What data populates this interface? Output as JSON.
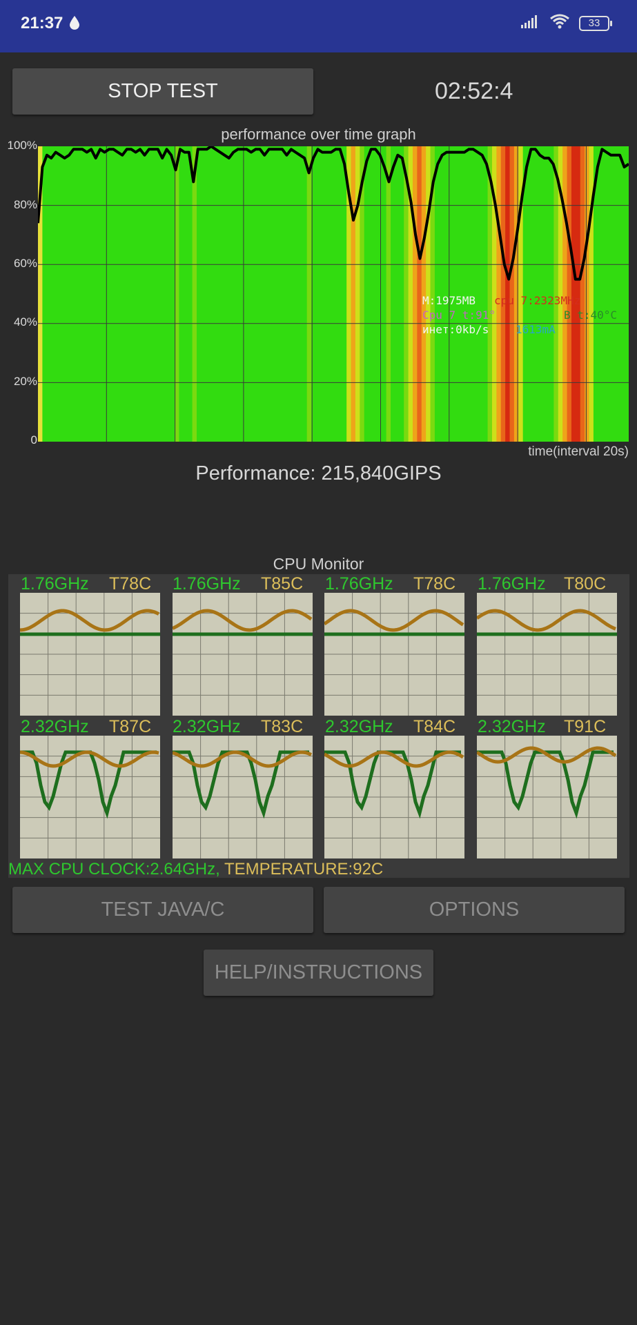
{
  "status_bar": {
    "time": "21:37",
    "battery": "33"
  },
  "controls": {
    "stop_label": "STOP TEST",
    "timer": "02:52:4",
    "test_java_label": "TEST JAVA/C",
    "options_label": "OPTIONS",
    "help_label": "HELP/INSTRUCTIONS"
  },
  "chart_data": {
    "type": "area",
    "title": "performance over time graph",
    "xlabel": "time(interval 20s)",
    "ylabel": "",
    "ylim": [
      0,
      100
    ],
    "y_ticks": [
      "100%",
      "80%",
      "60%",
      "40%",
      "20%",
      "0"
    ],
    "grid": true,
    "series": [
      {
        "values": [
          74,
          93,
          97,
          96,
          98,
          97,
          96,
          97,
          99,
          99,
          99,
          98,
          99,
          96,
          99,
          98,
          99,
          99,
          98,
          97,
          99,
          99,
          98,
          99,
          97,
          99,
          99,
          99,
          96,
          99,
          97,
          92,
          99,
          98,
          98,
          88,
          99,
          99,
          99,
          100,
          99,
          98,
          97,
          96,
          98,
          99,
          99,
          99,
          98,
          99,
          99,
          97,
          99,
          99,
          99,
          99,
          97,
          99,
          98,
          97,
          96,
          91,
          96,
          99,
          98,
          98,
          98,
          99,
          99,
          94,
          84,
          75,
          80,
          88,
          95,
          99,
          99,
          97,
          93,
          88,
          93,
          97,
          96,
          89,
          81,
          70,
          62,
          69,
          78,
          88,
          94,
          97,
          98,
          98,
          98,
          98,
          98,
          99,
          99,
          98,
          97,
          94,
          88,
          80,
          70,
          60,
          55,
          62,
          72,
          83,
          93,
          99,
          99,
          97,
          96,
          96,
          94,
          89,
          82,
          74,
          65,
          55,
          55,
          62,
          72,
          83,
          93,
          99,
          98,
          97,
          97,
          97,
          93,
          94
        ]
      }
    ]
  },
  "overlay": {
    "mem": "M:1975MB",
    "cpu_freq": "cpu 7:2323MHz",
    "cpu_temp": "Cpu 7 t:91°",
    "bat_temp": "B t:40°C",
    "net": "инет:0kb/s",
    "current": "1613mA"
  },
  "performance_text": "Performance: 215,840GIPS",
  "cpu_monitor": {
    "title": "CPU Monitor",
    "cores": [
      {
        "freq": "1.76GHz",
        "temp": "T78C"
      },
      {
        "freq": "1.76GHz",
        "temp": "T85C"
      },
      {
        "freq": "1.76GHz",
        "temp": "T78C"
      },
      {
        "freq": "1.76GHz",
        "temp": "T80C"
      },
      {
        "freq": "2.32GHz",
        "temp": "T87C"
      },
      {
        "freq": "2.32GHz",
        "temp": "T83C"
      },
      {
        "freq": "2.32GHz",
        "temp": "T84C"
      },
      {
        "freq": "2.32GHz",
        "temp": "T91C"
      }
    ],
    "max_clock": "MAX CPU CLOCK:2.64GHz,",
    "max_temp": "TEMPERATURE:92C"
  },
  "colors": {
    "status_bar": "#283593",
    "background": "#2a2a2a",
    "freq_green": "#2ec82e",
    "temp_gold": "#dcbe5a",
    "line_brown": "#a87416",
    "line_green": "#1e6e1e"
  }
}
